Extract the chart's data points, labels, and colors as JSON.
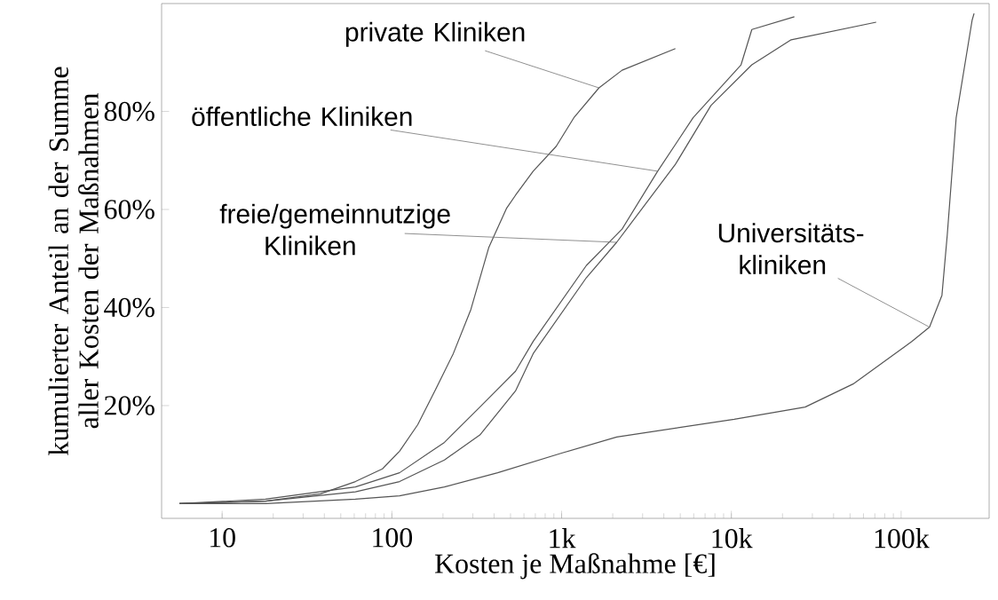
{
  "chart_data": {
    "type": "line",
    "xlabel": "Kosten je Maßnahme [€]",
    "ylabel": "kumulierter Anteil an der Summe aller Kosten der Maßnahmen",
    "annotations": [
      {
        "text": "private Kliniken",
        "x": 1660,
        "y": 84.8
      },
      {
        "text": "öffentliche Kliniken",
        "x": 3680,
        "y": 67.8
      },
      {
        "text": "freie/gemeinnutzige Kliniken",
        "x": 2110,
        "y": 53.3
      },
      {
        "text": "Universitäts-kliniken",
        "x": 147000,
        "y": 36.0
      }
    ],
    "log": "x",
    "grid": false,
    "marker": "none",
    "line_style": "solid",
    "xlim": [
      4.4,
      330000
    ],
    "ylim": [
      -3,
      102
    ],
    "xticks": [
      {
        "value": 10,
        "label": "10"
      },
      {
        "value": 100,
        "label": "100"
      },
      {
        "value": 1000,
        "label": "1k"
      },
      {
        "value": 10000,
        "label": "10k"
      },
      {
        "value": 100000,
        "label": "100k"
      }
    ],
    "yticks": [
      {
        "value": 20,
        "label": "20%"
      },
      {
        "value": 40,
        "label": "40%"
      },
      {
        "value": 60,
        "label": "60%"
      },
      {
        "value": 80,
        "label": "80%"
      }
    ],
    "series": [
      {
        "color": "#555555",
        "x": [
          5.6,
          18,
          38,
          61,
          88,
          111,
          142,
          181,
          230,
          292,
          372,
          473,
          535,
          680,
          930,
          1180,
          1660,
          2270,
          4680
        ],
        "values": [
          0,
          0.5,
          2.0,
          4.5,
          7.1,
          10.7,
          16.1,
          23.3,
          30.6,
          39.6,
          52.2,
          60.2,
          62.9,
          67.8,
          72.9,
          78.7,
          84.8,
          88.4,
          92.8
        ]
      },
      {
        "color": "#555555",
        "x": [
          5.6,
          18,
          61,
          111,
          204,
          330,
          535,
          680,
          1400,
          2270,
          3680,
          5950,
          11400,
          13200,
          23500
        ],
        "values": [
          0,
          0.9,
          3.4,
          6.3,
          12.5,
          19.7,
          27,
          33.1,
          48.6,
          56,
          67.8,
          78.7,
          89.5,
          96.7,
          99.3
        ]
      },
      {
        "color": "#555555",
        "x": [
          5.6,
          18,
          61,
          111,
          204,
          330,
          535,
          680,
          1400,
          2110,
          4680,
          7580,
          13200,
          22500,
          71300
        ],
        "values": [
          0,
          0.5,
          2.4,
          4.5,
          8.9,
          14,
          23,
          30.6,
          46.1,
          53.3,
          69.2,
          81.2,
          89.5,
          94.6,
          98.2
        ]
      },
      {
        "color": "#555555",
        "x": [
          5.6,
          18,
          61,
          111,
          204,
          420,
          1000,
          2110,
          10400,
          27200,
          52100,
          116000,
          147000,
          174000,
          187000,
          211000,
          262000,
          269000
        ],
        "values": [
          0,
          0,
          0.9,
          1.6,
          3.4,
          6.3,
          10.3,
          13.6,
          17.2,
          19.7,
          24.4,
          33.1,
          36.0,
          42.5,
          54.8,
          78.7,
          98.6,
          100
        ]
      }
    ]
  }
}
